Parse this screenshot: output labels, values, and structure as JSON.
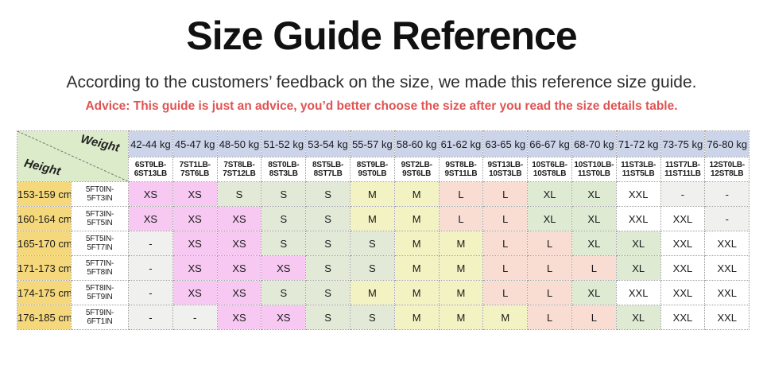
{
  "header": {
    "title": "Size Guide Reference",
    "subtitle": "According to the customers’ feedback on the size, we made this reference size guide.",
    "advice": "Advice: This guide is just an advice, you’d better choose the size after you read the size details table."
  },
  "table": {
    "corner": {
      "weight_label": "Weight",
      "height_label": "Height"
    },
    "weight_columns": [
      {
        "kg": "42-44 kg",
        "lb": [
          "6ST9LB-",
          "6ST13LB"
        ]
      },
      {
        "kg": "45-47 kg",
        "lb": [
          "7ST1LB-",
          "7ST6LB"
        ]
      },
      {
        "kg": "48-50 kg",
        "lb": [
          "7ST8LB-",
          "7ST12LB"
        ]
      },
      {
        "kg": "51-52 kg",
        "lb": [
          "8ST0LB-",
          "8ST3LB"
        ]
      },
      {
        "kg": "53-54 kg",
        "lb": [
          "8ST5LB-",
          "8ST7LB"
        ]
      },
      {
        "kg": "55-57 kg",
        "lb": [
          "8ST9LB-",
          "9ST0LB"
        ]
      },
      {
        "kg": "58-60 kg",
        "lb": [
          "9ST2LB-",
          "9ST6LB"
        ]
      },
      {
        "kg": "61-62 kg",
        "lb": [
          "9ST8LB-",
          "9ST11LB"
        ]
      },
      {
        "kg": "63-65 kg",
        "lb": [
          "9ST13LB-",
          "10ST3LB"
        ]
      },
      {
        "kg": "66-67 kg",
        "lb": [
          "10ST6LB-",
          "10ST8LB"
        ]
      },
      {
        "kg": "68-70 kg",
        "lb": [
          "10ST10LB-",
          "11ST0LB"
        ]
      },
      {
        "kg": "71-72 kg",
        "lb": [
          "11ST3LB-",
          "11ST5LB"
        ]
      },
      {
        "kg": "73-75 kg",
        "lb": [
          "11ST7LB-",
          "11ST11LB"
        ]
      },
      {
        "kg": "76-80 kg",
        "lb": [
          "12ST0LB-",
          "12ST8LB"
        ]
      }
    ],
    "rows": [
      {
        "cm": "153-159 cm",
        "ftin": [
          "5FT0IN-",
          "5FT3IN"
        ],
        "sizes": [
          "XS",
          "XS",
          "S",
          "S",
          "S",
          "M",
          "M",
          "L",
          "L",
          "XL",
          "XL",
          "XXL",
          "-",
          "-"
        ]
      },
      {
        "cm": "160-164 cm",
        "ftin": [
          "5FT3IN-",
          "5FT5IN"
        ],
        "sizes": [
          "XS",
          "XS",
          "XS",
          "S",
          "S",
          "M",
          "M",
          "L",
          "L",
          "XL",
          "XL",
          "XXL",
          "XXL",
          "-"
        ]
      },
      {
        "cm": "165-170 cm",
        "ftin": [
          "5FT5IN-",
          "5FT7IN"
        ],
        "sizes": [
          "-",
          "XS",
          "XS",
          "S",
          "S",
          "S",
          "M",
          "M",
          "L",
          "L",
          "XL",
          "XL",
          "XXL",
          "XXL"
        ]
      },
      {
        "cm": "171-173 cm",
        "ftin": [
          "5FT7IN-",
          "5FT8IN"
        ],
        "sizes": [
          "-",
          "XS",
          "XS",
          "XS",
          "S",
          "S",
          "M",
          "M",
          "L",
          "L",
          "L",
          "XL",
          "XXL",
          "XXL"
        ]
      },
      {
        "cm": "174-175 cm",
        "ftin": [
          "5FT8IN-",
          "5FT9IN"
        ],
        "sizes": [
          "-",
          "XS",
          "XS",
          "S",
          "S",
          "M",
          "M",
          "M",
          "L",
          "L",
          "XL",
          "XXL",
          "XXL",
          "XXL"
        ]
      },
      {
        "cm": "176-185 cm",
        "ftin": [
          "5FT9IN-",
          "6FT1IN"
        ],
        "sizes": [
          "-",
          "-",
          "XS",
          "XS",
          "S",
          "S",
          "M",
          "M",
          "M",
          "L",
          "L",
          "XL",
          "XXL",
          "XXL"
        ]
      }
    ],
    "size_colors": {
      "XS": "#f7c8f1",
      "S": "#e3e9d7",
      "M": "#f2f2c2",
      "L": "#f9ddd2",
      "XL": "#deead2",
      "XXL": "#ffffff",
      "-": "#f0f0ee"
    },
    "theme": {
      "corner_bg": "#dcecca",
      "kg_header_bg": "#ccd4e9",
      "lb_header_bg": "#ffffff",
      "height_col_bg": "#f5d87c",
      "ftin_col_bg": "#ffffff",
      "border_color": "#9b9b9b",
      "advice_color": "#e05353",
      "diagonal_color": "#777777"
    }
  }
}
